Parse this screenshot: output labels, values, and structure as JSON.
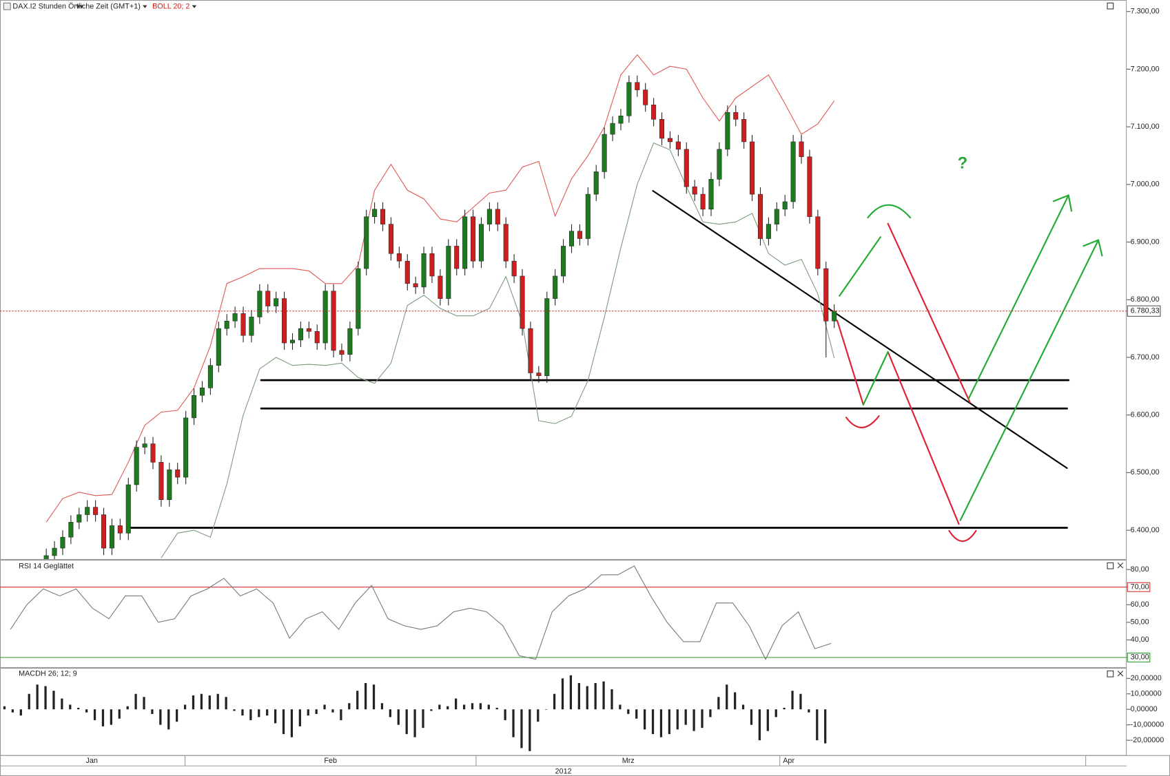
{
  "chart_data": [
    {
      "type": "candlestick",
      "title": "DAX.I2 Stunden Örtliche Zeit (GMT+1)",
      "indicator": "BOLL 20; 2",
      "up_color": "#1e7a1e",
      "down_color": "#cc1f1f",
      "open": [
        6345,
        6356,
        6369,
        6388,
        6414,
        6427,
        6440,
        6427,
        6369,
        6408,
        6395,
        6479,
        6544,
        6550,
        6518,
        6453,
        6505,
        6492,
        6595,
        6634,
        6647,
        6686,
        6750,
        6763,
        6776,
        6738,
        6770,
        6815,
        6789,
        6802,
        6725,
        6730,
        6750,
        6745,
        6725,
        6815,
        6712,
        6705,
        6750,
        6854,
        6944,
        6957,
        6931,
        6880,
        6867,
        6828,
        6822,
        6880,
        6841,
        6802,
        6893,
        6854,
        6944,
        6867,
        6931,
        6957,
        6931,
        6867,
        6841,
        6750,
        6673,
        6668,
        6802,
        6841,
        6893,
        6919,
        6906,
        6983,
        7022,
        7087,
        7106,
        7119,
        7177,
        7164,
        7138,
        7113,
        7080,
        7074,
        7061,
        6996,
        6983,
        6957,
        7009,
        7061,
        7125,
        7113,
        7074,
        6983,
        6906,
        6931,
        6957,
        6970,
        7074,
        7048,
        6944,
        6854,
        6763
      ],
      "high": [
        6368,
        6381,
        6400,
        6426,
        6439,
        6452,
        6452,
        6439,
        6420,
        6420,
        6491,
        6556,
        6562,
        6562,
        6530,
        6517,
        6517,
        6607,
        6646,
        6659,
        6698,
        6762,
        6775,
        6788,
        6788,
        6782,
        6827,
        6827,
        6814,
        6814,
        6742,
        6762,
        6762,
        6757,
        6827,
        6827,
        6724,
        6762,
        6866,
        6956,
        6969,
        6969,
        6943,
        6892,
        6879,
        6840,
        6892,
        6892,
        6853,
        6905,
        6905,
        6956,
        6956,
        6943,
        6969,
        6969,
        6943,
        6879,
        6853,
        6762,
        6685,
        6814,
        6853,
        6905,
        6931,
        6931,
        6995,
        7034,
        7099,
        7118,
        7131,
        7189,
        7189,
        7176,
        7150,
        7125,
        7092,
        7086,
        7073,
        7008,
        6995,
        7021,
        7073,
        7137,
        7137,
        7125,
        7086,
        6995,
        6943,
        6969,
        6982,
        7086,
        7086,
        7060,
        6956,
        6866,
        6792
      ],
      "low": [
        6333,
        6344,
        6357,
        6376,
        6402,
        6415,
        6415,
        6357,
        6357,
        6383,
        6383,
        6467,
        6532,
        6506,
        6441,
        6441,
        6480,
        6480,
        6583,
        6622,
        6635,
        6674,
        6738,
        6751,
        6726,
        6726,
        6758,
        6777,
        6777,
        6713,
        6713,
        6718,
        6733,
        6713,
        6713,
        6700,
        6693,
        6693,
        6738,
        6842,
        6932,
        6919,
        6868,
        6855,
        6816,
        6810,
        6810,
        6829,
        6790,
        6790,
        6842,
        6842,
        6855,
        6855,
        6919,
        6919,
        6855,
        6829,
        6738,
        6661,
        6656,
        6656,
        6790,
        6829,
        6881,
        6894,
        6894,
        6971,
        7010,
        7075,
        7094,
        7107,
        7152,
        7126,
        7101,
        7068,
        7062,
        7049,
        6984,
        6971,
        6945,
        6945,
        6997,
        7049,
        7101,
        7062,
        6971,
        6894,
        6894,
        6919,
        6945,
        6958,
        7036,
        6932,
        6842,
        6700,
        6751
      ],
      "close": [
        6356,
        6369,
        6388,
        6414,
        6427,
        6440,
        6427,
        6369,
        6408,
        6395,
        6479,
        6544,
        6550,
        6518,
        6453,
        6505,
        6492,
        6595,
        6634,
        6647,
        6686,
        6750,
        6763,
        6776,
        6738,
        6770,
        6815,
        6789,
        6802,
        6725,
        6730,
        6750,
        6745,
        6725,
        6815,
        6712,
        6705,
        6750,
        6854,
        6944,
        6957,
        6931,
        6880,
        6867,
        6828,
        6822,
        6880,
        6841,
        6802,
        6893,
        6854,
        6944,
        6867,
        6931,
        6957,
        6931,
        6867,
        6841,
        6750,
        6673,
        6668,
        6802,
        6841,
        6893,
        6919,
        6906,
        6983,
        7022,
        7087,
        7106,
        7119,
        7177,
        7164,
        7138,
        7113,
        7080,
        7074,
        7061,
        6996,
        6983,
        6957,
        7009,
        7061,
        7125,
        7113,
        7074,
        6983,
        6906,
        6931,
        6957,
        6970,
        7074,
        7048,
        6944,
        6854,
        6763,
        6780.33
      ],
      "upper_band": {
        "color": "#e05555",
        "values": [
          6414,
          6455,
          6466,
          6460,
          6462,
          6518,
          6582,
          6605,
          6608,
          6647,
          6720,
          6828,
          6840,
          6854,
          6854,
          6854,
          6850,
          6828,
          6828,
          6860,
          6990,
          7035,
          6990,
          6975,
          6940,
          6935,
          6960,
          6985,
          6990,
          7030,
          7040,
          6945,
          7010,
          7050,
          7100,
          7190,
          7225,
          7190,
          7205,
          7200,
          7150,
          7110,
          7150,
          7170,
          7190,
          7140,
          7087,
          7105,
          7145
        ]
      },
      "lower_band": {
        "color": "#7a9a7a",
        "values": [
          null,
          null,
          null,
          null,
          null,
          null,
          null,
          6352,
          6395,
          6400,
          6388,
          6480,
          6600,
          6680,
          6700,
          6686,
          6688,
          6686,
          6690,
          6665,
          6655,
          6690,
          6790,
          6808,
          6785,
          6772,
          6772,
          6785,
          6840,
          6760,
          6590,
          6585,
          6598,
          6660,
          6770,
          6890,
          7000,
          7072,
          7060,
          6996,
          6935,
          6931,
          6935,
          6950,
          6880,
          6860,
          6870,
          6810,
          6699
        ]
      },
      "last_price": {
        "value": 6780.33,
        "label": "6.780,33",
        "color": "#cc1f1f"
      },
      "annotation": "?",
      "ylim": [
        6350,
        7320
      ],
      "yticks": [
        {
          "value": 7300,
          "label": "7.300,00"
        },
        {
          "value": 7200,
          "label": "7.200,00"
        },
        {
          "value": 7100,
          "label": "7.100,00"
        },
        {
          "value": 7000,
          "label": "7.000,00"
        },
        {
          "value": 6900,
          "label": "6.900,00"
        },
        {
          "value": 6800,
          "label": "6.800,00"
        },
        {
          "value": 6700,
          "label": "6.700,00"
        },
        {
          "value": 6600,
          "label": "6.600,00"
        },
        {
          "value": 6500,
          "label": "6.500,00"
        },
        {
          "value": 6400,
          "label": "6.400,00"
        }
      ]
    },
    {
      "type": "line",
      "title": "RSI 14 Geglättet",
      "color": "#777777",
      "values": [
        46,
        60,
        69,
        65,
        69,
        58,
        52,
        65,
        65,
        50,
        52,
        65,
        69,
        75,
        65,
        69,
        61,
        41,
        52,
        56,
        46,
        61,
        71,
        52,
        48,
        46,
        48,
        56,
        58,
        56,
        48,
        31,
        29,
        56,
        65,
        69,
        77,
        77,
        82,
        65,
        50,
        39,
        39,
        61,
        61,
        48,
        29,
        48,
        56,
        35,
        38
      ],
      "levels": [
        {
          "value": 70,
          "color": "#d03030"
        },
        {
          "value": 30,
          "color": "#2a9a2a"
        }
      ],
      "ylim": [
        24.5,
        85.1
      ],
      "yticks": [
        {
          "value": 80,
          "label": "80,00"
        },
        {
          "value": 70,
          "label": "70,00"
        },
        {
          "value": 60,
          "label": "60,00"
        },
        {
          "value": 50,
          "label": "50,00"
        },
        {
          "value": 40,
          "label": "40,00"
        },
        {
          "value": 30,
          "label": "30,00"
        }
      ]
    },
    {
      "type": "bar",
      "title": "MACDH 26; 12; 9",
      "color": "#222222",
      "values": [
        2,
        -2,
        -4,
        10,
        16,
        15,
        12,
        7,
        3,
        1,
        -2,
        -7,
        -11,
        -10,
        -6,
        2,
        10,
        8,
        -3,
        -10,
        -13,
        -8,
        3,
        9,
        10,
        9,
        10,
        8,
        -1,
        -4,
        -7,
        -5,
        -4,
        -9,
        -16,
        -18,
        -11,
        -4,
        -3,
        3,
        -2,
        -7,
        4,
        12,
        17,
        16,
        4,
        -5,
        -10,
        -16,
        -18,
        -12,
        -1,
        3,
        2,
        7,
        3,
        4,
        4,
        3,
        1,
        -7,
        -18,
        -25,
        -27,
        -8,
        0,
        10,
        20,
        22,
        17,
        15,
        17,
        18,
        13,
        3,
        -3,
        -6,
        -13,
        -16,
        -18,
        -16,
        -13,
        -10,
        -14,
        -12,
        -5,
        8,
        16,
        11,
        3,
        -10,
        -20,
        -14,
        -5,
        1,
        12,
        10,
        -2,
        -20,
        -22
      ],
      "ylim": [
        -29.6,
        26.3
      ],
      "yticks": [
        {
          "value": 20,
          "label": "20,00000"
        },
        {
          "value": 10,
          "label": "10,00000"
        },
        {
          "value": 0,
          "label": "0,00000"
        },
        {
          "value": -10,
          "label": "-10,00000"
        },
        {
          "value": -20,
          "label": "-20,00000"
        }
      ]
    }
  ],
  "time_axis": {
    "months": [
      "Jan",
      "Feb",
      "Mrz",
      "Apr"
    ],
    "year": "2012"
  }
}
